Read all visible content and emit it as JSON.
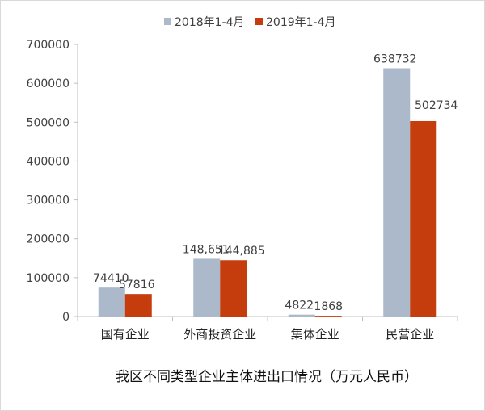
{
  "chart_data": {
    "type": "bar",
    "title": "我区不同类型企业主体进出口情况（万元人民币）",
    "categories": [
      "国有企业",
      "外商投资企业",
      "集体企业",
      "民营企业"
    ],
    "series": [
      {
        "name": "2018年1-4月",
        "color": "#acb9ca",
        "values": [
          74410,
          148651,
          4822,
          638732
        ],
        "labels": [
          "74410",
          "148,651",
          "4822",
          "638732"
        ]
      },
      {
        "name": "2019年1-4月",
        "color": "#c53d0c",
        "values": [
          57816,
          144885,
          1868,
          502734
        ],
        "labels": [
          "57816",
          "144,885",
          "1868",
          "502734"
        ]
      }
    ],
    "ylim": [
      0,
      700000
    ],
    "yticks": [
      0,
      100000,
      200000,
      300000,
      400000,
      500000,
      600000,
      700000
    ],
    "ytick_labels": [
      "0",
      "100000",
      "200000",
      "300000",
      "400000",
      "500000",
      "600000",
      "700000"
    ],
    "grid": false,
    "legend_position": "top-center"
  }
}
